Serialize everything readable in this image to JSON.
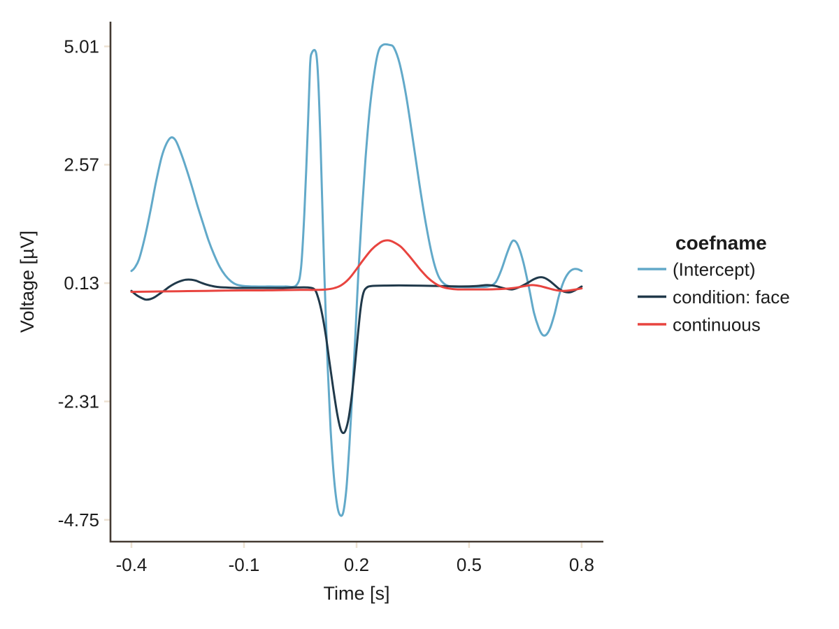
{
  "chart_data": {
    "type": "line",
    "title": "",
    "xlabel": "Time [s]",
    "ylabel": "Voltage [µV]",
    "grid": false,
    "xlim": [
      -0.456,
      0.858
    ],
    "ylim": [
      -5.2,
      5.52
    ],
    "x_ticks": {
      "values": [
        -0.4,
        -0.1,
        0.2,
        0.5,
        0.8
      ],
      "labels": [
        "-0.4",
        "-0.1",
        "0.2",
        "0.5",
        "0.8"
      ]
    },
    "y_ticks": {
      "values": [
        5.01,
        2.57,
        0.13,
        -2.31,
        -4.75
      ],
      "labels": [
        "5.01",
        "2.57",
        "0.13",
        "-2.31",
        "-4.75"
      ]
    },
    "legend": {
      "title": "coefname",
      "position": "right"
    },
    "series": [
      {
        "name": "(Intercept)",
        "color": "#62A9C9",
        "points": [
          [
            -0.4,
            0.38
          ],
          [
            -0.392,
            0.44
          ],
          [
            -0.38,
            0.62
          ],
          [
            -0.365,
            1.05
          ],
          [
            -0.35,
            1.6
          ],
          [
            -0.335,
            2.2
          ],
          [
            -0.32,
            2.72
          ],
          [
            -0.307,
            3.0
          ],
          [
            -0.295,
            3.13
          ],
          [
            -0.283,
            3.08
          ],
          [
            -0.27,
            2.85
          ],
          [
            -0.255,
            2.52
          ],
          [
            -0.24,
            2.15
          ],
          [
            -0.225,
            1.75
          ],
          [
            -0.21,
            1.38
          ],
          [
            -0.195,
            1.02
          ],
          [
            -0.18,
            0.72
          ],
          [
            -0.165,
            0.47
          ],
          [
            -0.15,
            0.29
          ],
          [
            -0.135,
            0.17
          ],
          [
            -0.12,
            0.1
          ],
          [
            -0.1,
            0.07
          ],
          [
            -0.07,
            0.06
          ],
          [
            -0.03,
            0.06
          ],
          [
            0.01,
            0.06
          ],
          [
            0.04,
            0.09
          ],
          [
            0.052,
            0.45
          ],
          [
            0.061,
            1.6
          ],
          [
            0.07,
            3.3
          ],
          [
            0.076,
            4.6
          ],
          [
            0.081,
            4.88
          ],
          [
            0.092,
            4.88
          ],
          [
            0.098,
            4.3
          ],
          [
            0.104,
            3.0
          ],
          [
            0.11,
            1.4
          ],
          [
            0.116,
            -0.1
          ],
          [
            0.123,
            -1.6
          ],
          [
            0.131,
            -2.9
          ],
          [
            0.14,
            -3.9
          ],
          [
            0.149,
            -4.48
          ],
          [
            0.157,
            -4.66
          ],
          [
            0.165,
            -4.58
          ],
          [
            0.173,
            -4.1
          ],
          [
            0.181,
            -3.2
          ],
          [
            0.189,
            -2.1
          ],
          [
            0.197,
            -0.9
          ],
          [
            0.205,
            0.35
          ],
          [
            0.214,
            1.55
          ],
          [
            0.224,
            2.7
          ],
          [
            0.235,
            3.7
          ],
          [
            0.247,
            4.45
          ],
          [
            0.258,
            4.9
          ],
          [
            0.27,
            5.04
          ],
          [
            0.288,
            5.04
          ],
          [
            0.3,
            4.98
          ],
          [
            0.315,
            4.65
          ],
          [
            0.332,
            4.0
          ],
          [
            0.35,
            3.1
          ],
          [
            0.368,
            2.15
          ],
          [
            0.386,
            1.3
          ],
          [
            0.403,
            0.65
          ],
          [
            0.418,
            0.28
          ],
          [
            0.433,
            0.12
          ],
          [
            0.45,
            0.06
          ],
          [
            0.48,
            0.05
          ],
          [
            0.52,
            0.05
          ],
          [
            0.55,
            0.06
          ],
          [
            0.57,
            0.14
          ],
          [
            0.585,
            0.38
          ],
          [
            0.6,
            0.72
          ],
          [
            0.613,
            0.97
          ],
          [
            0.622,
            1.0
          ],
          [
            0.632,
            0.88
          ],
          [
            0.645,
            0.55
          ],
          [
            0.66,
            0.02
          ],
          [
            0.673,
            -0.48
          ],
          [
            0.685,
            -0.78
          ],
          [
            0.695,
            -0.93
          ],
          [
            0.705,
            -0.94
          ],
          [
            0.716,
            -0.8
          ],
          [
            0.728,
            -0.5
          ],
          [
            0.74,
            -0.12
          ],
          [
            0.752,
            0.16
          ],
          [
            0.764,
            0.33
          ],
          [
            0.776,
            0.41
          ],
          [
            0.788,
            0.42
          ],
          [
            0.8,
            0.38
          ]
        ]
      },
      {
        "name": "condition: face",
        "color": "#20394A",
        "points": [
          [
            -0.4,
            -0.03
          ],
          [
            -0.388,
            -0.11
          ],
          [
            -0.375,
            -0.17
          ],
          [
            -0.362,
            -0.21
          ],
          [
            -0.35,
            -0.2
          ],
          [
            -0.338,
            -0.16
          ],
          [
            -0.325,
            -0.09
          ],
          [
            -0.312,
            -0.02
          ],
          [
            -0.3,
            0.05
          ],
          [
            -0.285,
            0.12
          ],
          [
            -0.27,
            0.17
          ],
          [
            -0.255,
            0.2
          ],
          [
            -0.24,
            0.2
          ],
          [
            -0.228,
            0.18
          ],
          [
            -0.215,
            0.14
          ],
          [
            -0.2,
            0.1
          ],
          [
            -0.185,
            0.07
          ],
          [
            -0.17,
            0.05
          ],
          [
            -0.15,
            0.04
          ],
          [
            -0.12,
            0.03
          ],
          [
            -0.08,
            0.03
          ],
          [
            -0.04,
            0.03
          ],
          [
            0.0,
            0.03
          ],
          [
            0.04,
            0.04
          ],
          [
            0.07,
            0.04
          ],
          [
            0.088,
            0.0
          ],
          [
            0.098,
            -0.18
          ],
          [
            0.108,
            -0.5
          ],
          [
            0.118,
            -0.95
          ],
          [
            0.128,
            -1.5
          ],
          [
            0.138,
            -2.05
          ],
          [
            0.148,
            -2.55
          ],
          [
            0.157,
            -2.87
          ],
          [
            0.164,
            -2.96
          ],
          [
            0.171,
            -2.9
          ],
          [
            0.179,
            -2.65
          ],
          [
            0.188,
            -2.15
          ],
          [
            0.196,
            -1.55
          ],
          [
            0.204,
            -0.9
          ],
          [
            0.211,
            -0.38
          ],
          [
            0.218,
            -0.08
          ],
          [
            0.226,
            0.03
          ],
          [
            0.24,
            0.07
          ],
          [
            0.28,
            0.08
          ],
          [
            0.35,
            0.08
          ],
          [
            0.42,
            0.07
          ],
          [
            0.48,
            0.06
          ],
          [
            0.52,
            0.07
          ],
          [
            0.548,
            0.09
          ],
          [
            0.57,
            0.07
          ],
          [
            0.595,
            0.02
          ],
          [
            0.615,
            0.0
          ],
          [
            0.635,
            0.05
          ],
          [
            0.655,
            0.13
          ],
          [
            0.673,
            0.21
          ],
          [
            0.688,
            0.25
          ],
          [
            0.7,
            0.24
          ],
          [
            0.714,
            0.18
          ],
          [
            0.728,
            0.09
          ],
          [
            0.742,
            0.0
          ],
          [
            0.755,
            -0.05
          ],
          [
            0.768,
            -0.06
          ],
          [
            0.782,
            -0.02
          ],
          [
            0.8,
            0.06
          ]
        ]
      },
      {
        "name": "continuous",
        "color": "#E8443F",
        "points": [
          [
            -0.4,
            -0.05
          ],
          [
            -0.35,
            -0.045
          ],
          [
            -0.3,
            -0.04
          ],
          [
            -0.25,
            -0.035
          ],
          [
            -0.2,
            -0.03
          ],
          [
            -0.15,
            -0.025
          ],
          [
            -0.1,
            -0.02
          ],
          [
            -0.05,
            -0.02
          ],
          [
            0.0,
            -0.015
          ],
          [
            0.05,
            -0.01
          ],
          [
            0.09,
            -0.01
          ],
          [
            0.12,
            0.0
          ],
          [
            0.142,
            0.03
          ],
          [
            0.16,
            0.09
          ],
          [
            0.18,
            0.22
          ],
          [
            0.2,
            0.42
          ],
          [
            0.22,
            0.63
          ],
          [
            0.24,
            0.82
          ],
          [
            0.258,
            0.94
          ],
          [
            0.272,
            1.0
          ],
          [
            0.286,
            1.01
          ],
          [
            0.3,
            0.97
          ],
          [
            0.318,
            0.88
          ],
          [
            0.336,
            0.73
          ],
          [
            0.354,
            0.56
          ],
          [
            0.372,
            0.39
          ],
          [
            0.39,
            0.24
          ],
          [
            0.408,
            0.13
          ],
          [
            0.425,
            0.06
          ],
          [
            0.445,
            0.02
          ],
          [
            0.47,
            0.0
          ],
          [
            0.51,
            0.0
          ],
          [
            0.55,
            0.0
          ],
          [
            0.59,
            0.01
          ],
          [
            0.62,
            0.03
          ],
          [
            0.65,
            0.07
          ],
          [
            0.668,
            0.09
          ],
          [
            0.688,
            0.07
          ],
          [
            0.708,
            0.03
          ],
          [
            0.728,
            -0.01
          ],
          [
            0.748,
            -0.03
          ],
          [
            0.768,
            -0.02
          ],
          [
            0.785,
            0.0
          ],
          [
            0.8,
            0.02
          ]
        ]
      }
    ]
  },
  "style": {
    "background": "#FFFFFF",
    "axis_color": "#443A32",
    "tick_color": "#EDE2D2",
    "text_color": "#1C1C1C",
    "series_colors": [
      "#62A9C9",
      "#20394A",
      "#E8443F"
    ]
  }
}
